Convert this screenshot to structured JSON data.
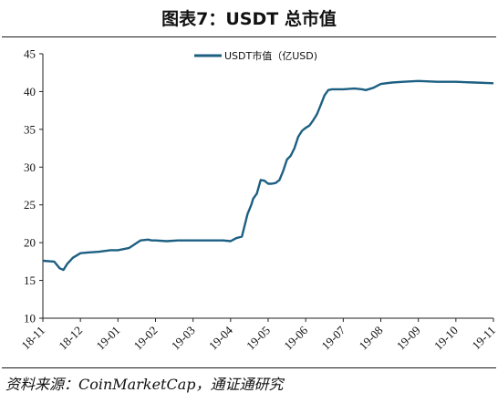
{
  "title": "图表7：USDT 总市值",
  "source": "资料来源：CoinMarketCap，通证通研究",
  "chart_data": {
    "type": "line",
    "title": "图表7：USDT 总市值",
    "xlabel": "",
    "ylabel": "",
    "ylim": [
      10,
      45
    ],
    "yticks": [
      10,
      15,
      20,
      25,
      30,
      35,
      40,
      45
    ],
    "grid": false,
    "legend_position": "top-center",
    "line_color": "#1d5f82",
    "x_ticks": [
      "18-11",
      "18-12",
      "19-01",
      "19-02",
      "19-03",
      "19-04",
      "19-05",
      "19-06",
      "19-07",
      "19-08",
      "19-09",
      "19-10",
      "19-11"
    ],
    "series": [
      {
        "name": "USDT市值（亿USD)",
        "x": [
          0.0,
          0.3,
          0.45,
          0.55,
          0.65,
          0.8,
          1.0,
          1.2,
          1.5,
          1.8,
          2.0,
          2.3,
          2.6,
          2.8,
          2.9,
          3.0,
          3.3,
          3.6,
          4.0,
          4.5,
          4.8,
          5.0,
          5.15,
          5.3,
          5.45,
          5.55,
          5.6,
          5.7,
          5.8,
          5.9,
          6.0,
          6.1,
          6.2,
          6.3,
          6.4,
          6.5,
          6.6,
          6.7,
          6.8,
          6.9,
          7.0,
          7.1,
          7.2,
          7.3,
          7.4,
          7.5,
          7.6,
          7.7,
          8.0,
          8.3,
          8.5,
          8.6,
          8.8,
          9.0,
          9.3,
          9.6,
          10.0,
          10.5,
          11.0,
          11.5,
          12.0
        ],
        "values": [
          17.6,
          17.5,
          16.6,
          16.4,
          17.2,
          18.0,
          18.6,
          18.7,
          18.8,
          19.0,
          19.0,
          19.3,
          20.3,
          20.4,
          20.3,
          20.3,
          20.2,
          20.3,
          20.3,
          20.3,
          20.3,
          20.2,
          20.6,
          20.8,
          23.8,
          25.0,
          25.8,
          26.5,
          28.3,
          28.2,
          27.8,
          27.8,
          27.9,
          28.3,
          29.5,
          31.0,
          31.5,
          32.5,
          34.0,
          34.8,
          35.2,
          35.5,
          36.2,
          37.0,
          38.2,
          39.5,
          40.2,
          40.3,
          40.3,
          40.4,
          40.3,
          40.2,
          40.5,
          41.0,
          41.2,
          41.3,
          41.4,
          41.3,
          41.3,
          41.2,
          41.1
        ]
      }
    ]
  }
}
